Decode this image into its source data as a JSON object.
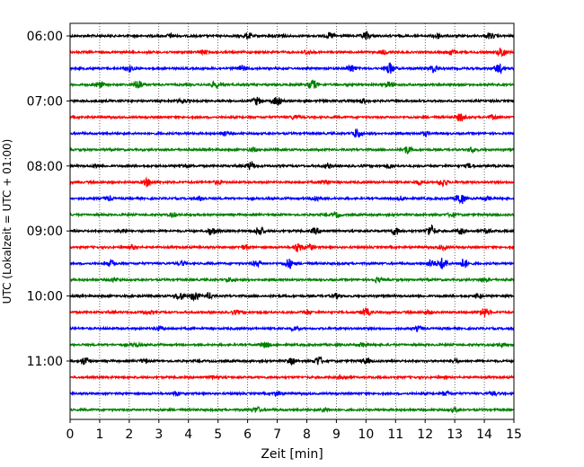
{
  "chart_data": {
    "type": "line",
    "title": "",
    "xlabel": "Zeit  [min]",
    "ylabel": "UTC (Lokalzeit = UTC + 01:00)",
    "xlim": [
      0,
      15
    ],
    "x_ticks": [
      0,
      1,
      2,
      3,
      4,
      5,
      6,
      7,
      8,
      9,
      10,
      11,
      12,
      13,
      14,
      15
    ],
    "x_tick_labels": [
      "0",
      "1",
      "2",
      "3",
      "4",
      "5",
      "6",
      "7",
      "8",
      "9",
      "10",
      "11",
      "12",
      "13",
      "14",
      "15"
    ],
    "y_tick_labels": [
      "06:00",
      "07:00",
      "08:00",
      "09:00",
      "10:00",
      "11:00"
    ],
    "grid": "vertical-dotted",
    "trace_interval_minutes": 15,
    "trace_colors": [
      "#000000",
      "#ff0000",
      "#0000ff",
      "#008000"
    ],
    "series": [
      {
        "start": "06:00",
        "color": "#000000",
        "events": [
          [
            3.4,
            2
          ],
          [
            6.0,
            3
          ],
          [
            7.1,
            2
          ],
          [
            8.8,
            3
          ],
          [
            10.0,
            4
          ],
          [
            12.4,
            3
          ],
          [
            14.2,
            3
          ]
        ]
      },
      {
        "start": "06:15",
        "color": "#ff0000",
        "events": [
          [
            4.5,
            2
          ],
          [
            8.0,
            2
          ],
          [
            10.6,
            2
          ],
          [
            12.9,
            3
          ],
          [
            14.6,
            5
          ]
        ]
      },
      {
        "start": "06:30",
        "color": "#0000ff",
        "events": [
          [
            2.0,
            3
          ],
          [
            5.8,
            3
          ],
          [
            9.5,
            4
          ],
          [
            10.8,
            6
          ],
          [
            12.3,
            4
          ],
          [
            14.5,
            5
          ]
        ]
      },
      {
        "start": "06:45",
        "color": "#008000",
        "events": [
          [
            1.0,
            3
          ],
          [
            2.3,
            5
          ],
          [
            4.9,
            3
          ],
          [
            8.2,
            5
          ],
          [
            10.8,
            3
          ]
        ]
      },
      {
        "start": "07:00",
        "color": "#000000",
        "events": [
          [
            3.8,
            2
          ],
          [
            6.3,
            4
          ],
          [
            7.0,
            5
          ],
          [
            9.9,
            2
          ]
        ]
      },
      {
        "start": "07:15",
        "color": "#ff0000",
        "events": [
          [
            7.6,
            2
          ],
          [
            13.2,
            4
          ],
          [
            14.3,
            2
          ]
        ]
      },
      {
        "start": "07:30",
        "color": "#0000ff",
        "events": [
          [
            5.2,
            2
          ],
          [
            9.7,
            5
          ],
          [
            12.0,
            2
          ]
        ]
      },
      {
        "start": "07:45",
        "color": "#008000",
        "events": [
          [
            6.2,
            2
          ],
          [
            11.4,
            4
          ],
          [
            13.6,
            2
          ]
        ]
      },
      {
        "start": "08:00",
        "color": "#000000",
        "events": [
          [
            0.9,
            2
          ],
          [
            3.9,
            2
          ],
          [
            6.1,
            4
          ],
          [
            8.7,
            2
          ],
          [
            10.8,
            2
          ],
          [
            13.5,
            2
          ]
        ]
      },
      {
        "start": "08:15",
        "color": "#ff0000",
        "events": [
          [
            2.6,
            4
          ],
          [
            5.0,
            2
          ],
          [
            8.6,
            3
          ],
          [
            11.8,
            2
          ],
          [
            12.6,
            4
          ]
        ]
      },
      {
        "start": "08:30",
        "color": "#0000ff",
        "events": [
          [
            1.3,
            2
          ],
          [
            4.4,
            2
          ],
          [
            8.3,
            3
          ],
          [
            11.2,
            2
          ],
          [
            13.2,
            6
          ],
          [
            14.1,
            2
          ]
        ]
      },
      {
        "start": "08:45",
        "color": "#008000",
        "events": [
          [
            3.5,
            2
          ],
          [
            9.0,
            2
          ],
          [
            12.9,
            2
          ]
        ]
      },
      {
        "start": "09:00",
        "color": "#000000",
        "events": [
          [
            1.8,
            2
          ],
          [
            4.8,
            4
          ],
          [
            6.4,
            5
          ],
          [
            8.3,
            3
          ],
          [
            11.0,
            4
          ],
          [
            12.2,
            6
          ],
          [
            13.2,
            3
          ],
          [
            14.1,
            2
          ]
        ]
      },
      {
        "start": "09:15",
        "color": "#ff0000",
        "events": [
          [
            2.1,
            2
          ],
          [
            5.9,
            2
          ],
          [
            7.7,
            5
          ],
          [
            8.1,
            3
          ],
          [
            12.6,
            2
          ]
        ]
      },
      {
        "start": "09:30",
        "color": "#0000ff",
        "events": [
          [
            1.4,
            3
          ],
          [
            3.8,
            2
          ],
          [
            6.3,
            3
          ],
          [
            7.4,
            5
          ],
          [
            12.2,
            4
          ],
          [
            12.6,
            6
          ],
          [
            13.3,
            5
          ]
        ]
      },
      {
        "start": "09:45",
        "color": "#008000",
        "events": [
          [
            1.5,
            2
          ],
          [
            5.4,
            2
          ],
          [
            10.4,
            2
          ],
          [
            14.0,
            2
          ]
        ]
      },
      {
        "start": "10:00",
        "color": "#000000",
        "events": [
          [
            3.7,
            4
          ],
          [
            4.2,
            5
          ],
          [
            4.7,
            3
          ],
          [
            9.0,
            2
          ],
          [
            13.8,
            2
          ]
        ]
      },
      {
        "start": "10:15",
        "color": "#ff0000",
        "events": [
          [
            2.6,
            2
          ],
          [
            5.6,
            2
          ],
          [
            8.0,
            2
          ],
          [
            10.0,
            4
          ],
          [
            12.1,
            2
          ],
          [
            14.0,
            5
          ]
        ]
      },
      {
        "start": "10:30",
        "color": "#0000ff",
        "events": [
          [
            3.0,
            2
          ],
          [
            7.6,
            2
          ],
          [
            11.8,
            2
          ]
        ]
      },
      {
        "start": "10:45",
        "color": "#008000",
        "events": [
          [
            2.2,
            2
          ],
          [
            6.6,
            3
          ],
          [
            9.9,
            2
          ],
          [
            14.6,
            2
          ]
        ]
      },
      {
        "start": "11:00",
        "color": "#000000",
        "events": [
          [
            0.5,
            4
          ],
          [
            2.5,
            2
          ],
          [
            7.5,
            3
          ],
          [
            8.4,
            5
          ],
          [
            10.0,
            3
          ],
          [
            13.0,
            2
          ]
        ]
      },
      {
        "start": "11:15",
        "color": "#ff0000",
        "events": [
          [
            4.9,
            2
          ],
          [
            9.2,
            2
          ]
        ]
      },
      {
        "start": "11:30",
        "color": "#0000ff",
        "events": [
          [
            3.6,
            2
          ],
          [
            7.0,
            2
          ],
          [
            12.7,
            2
          ],
          [
            14.3,
            2
          ]
        ]
      },
      {
        "start": "11:45",
        "color": "#008000",
        "events": [
          [
            6.3,
            3
          ],
          [
            8.6,
            2
          ],
          [
            13.0,
            2
          ]
        ]
      }
    ]
  }
}
